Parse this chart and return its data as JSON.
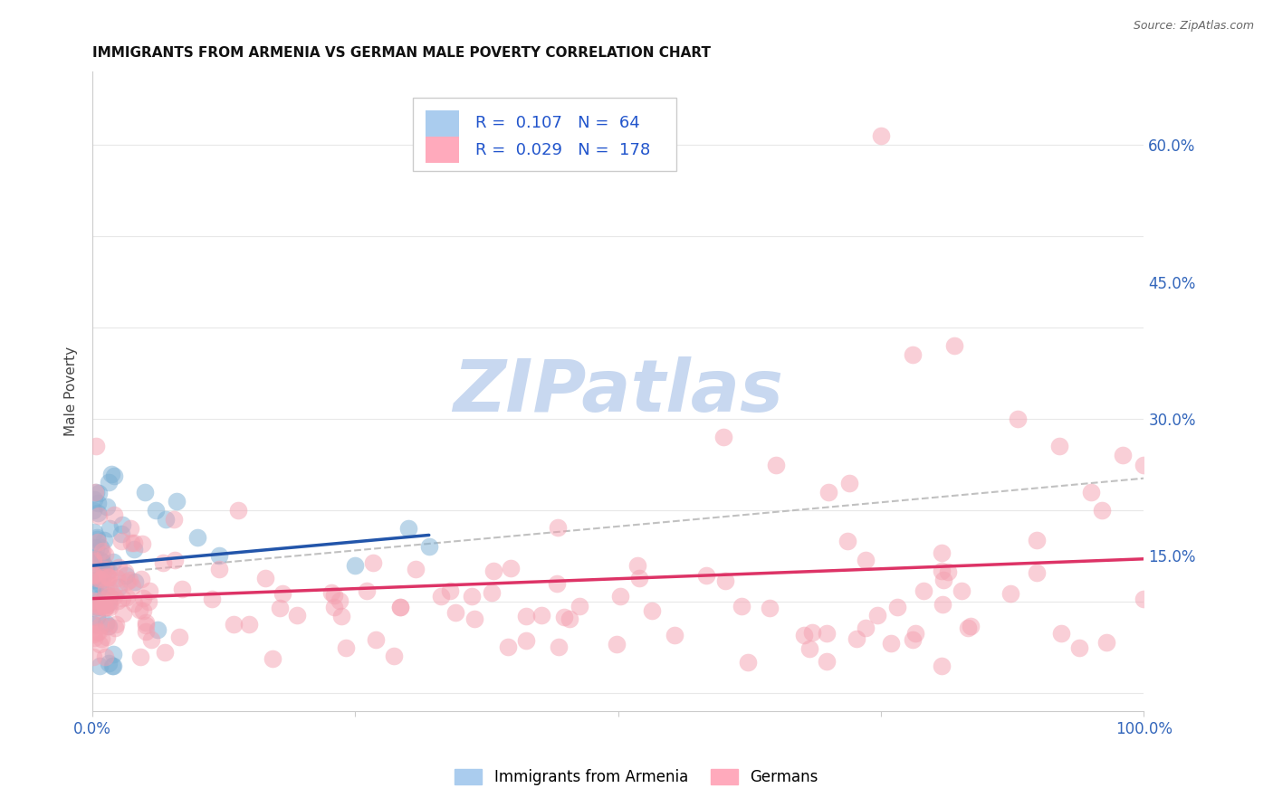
{
  "title": "IMMIGRANTS FROM ARMENIA VS GERMAN MALE POVERTY CORRELATION CHART",
  "source": "Source: ZipAtlas.com",
  "ylabel": "Male Poverty",
  "ytick_labels": [
    "15.0%",
    "30.0%",
    "45.0%",
    "60.0%"
  ],
  "ytick_values": [
    0.15,
    0.3,
    0.45,
    0.6
  ],
  "xlim": [
    0.0,
    1.0
  ],
  "ylim": [
    -0.02,
    0.68
  ],
  "legend_labels": [
    "Immigrants from Armenia",
    "Germans"
  ],
  "R_armenia": 0.107,
  "N_armenia": 64,
  "R_german": 0.029,
  "N_german": 178,
  "blue_color": "#7BAFD4",
  "pink_color": "#F4A0B0",
  "blue_line_color": "#2255AA",
  "pink_line_color": "#DD3366",
  "dashed_line_color": "#BBBBBB",
  "background_color": "#FFFFFF",
  "title_fontsize": 11,
  "source_fontsize": 9,
  "tick_fontsize": 12,
  "legend_fontsize": 12,
  "watermark_color": "#D0DFF0",
  "watermark_zip_color": "#C8D8EC",
  "watermark_atlas_color": "#D8E8F4"
}
